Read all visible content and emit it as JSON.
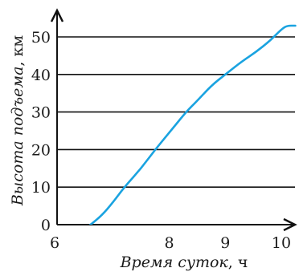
{
  "chart_data": {
    "type": "line",
    "title": "",
    "xlabel": {
      "name": "Время суток",
      "unit": "ч"
    },
    "ylabel": {
      "name": "Высота подъема",
      "unit": "км"
    },
    "xlim": [
      6,
      10.3
    ],
    "ylim": [
      0,
      56
    ],
    "x_ticks": [
      "6",
      "8",
      "9",
      "10"
    ],
    "y_ticks": [
      "0",
      "10",
      "20",
      "30",
      "40",
      "50"
    ],
    "grid": "horizontal",
    "line_color": "#1aa3e0",
    "series": [
      {
        "name": "",
        "x": [
          6.5,
          6.6,
          6.8,
          7.0,
          7.2,
          7.5,
          7.75,
          8.0,
          8.3,
          8.5,
          8.75,
          9.0,
          9.3,
          9.55,
          9.8,
          10.0,
          10.1,
          10.25
        ],
        "y": [
          -1,
          0,
          2.5,
          6,
          10,
          15,
          20,
          24.5,
          30,
          33,
          37,
          40,
          43.5,
          46,
          49,
          52,
          53,
          53
        ]
      }
    ]
  }
}
